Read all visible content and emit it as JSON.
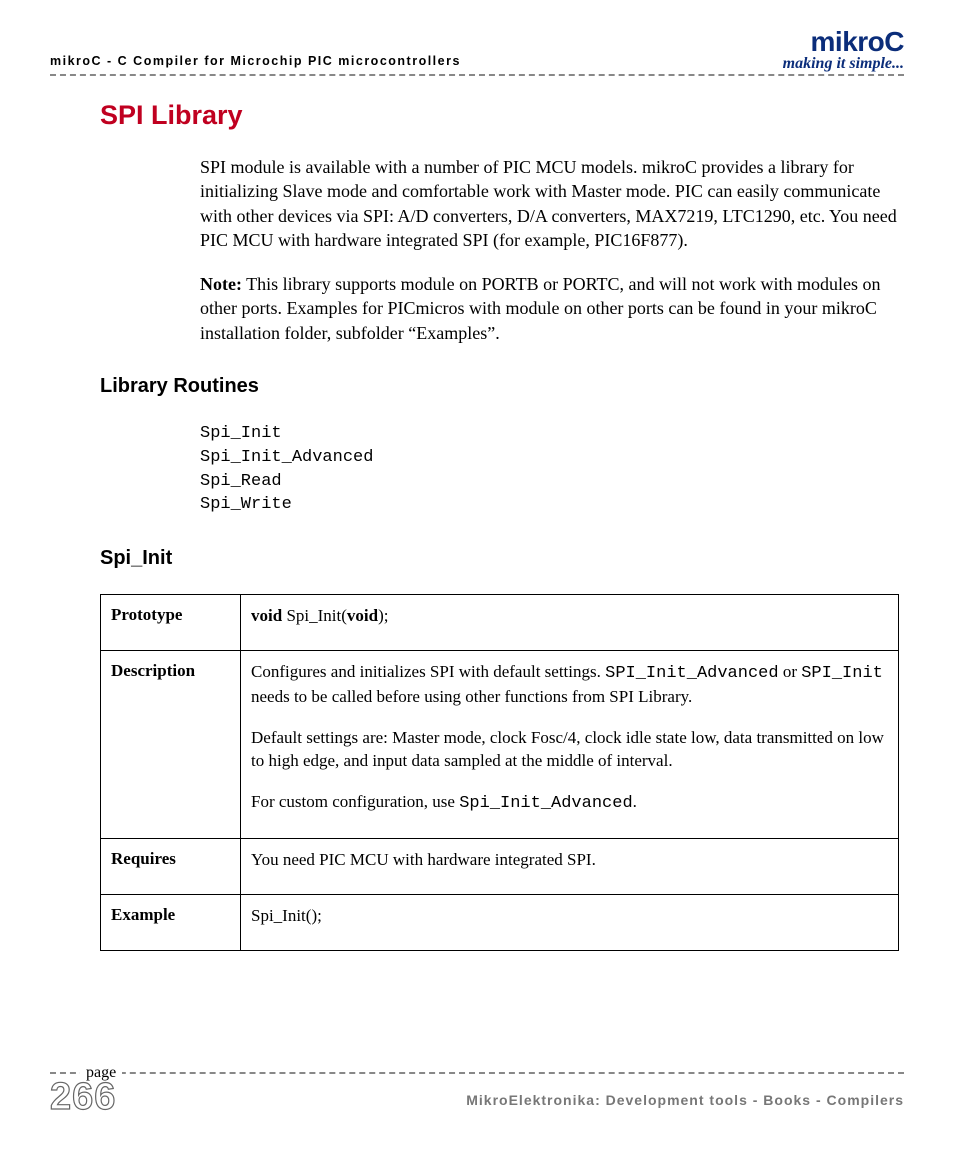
{
  "header": {
    "left": "mikroC - C Compiler for Microchip PIC microcontrollers",
    "brand": "mikroC",
    "tagline": "making it simple..."
  },
  "title": "SPI Library",
  "intro_para": "SPI module is available with a number of PIC MCU models. mikroC provides a library for initializing Slave mode and comfortable work with Master mode. PIC can easily communicate with other devices via SPI: A/D converters, D/A converters, MAX7219, LTC1290, etc. You need PIC MCU with hardware integrated SPI (for example, PIC16F877).",
  "note_label": "Note:",
  "note_text": " This library supports module on PORTB or PORTC, and will not work with modules on other ports. Examples for PICmicros with module on other ports can be found in your mikroC installation folder, subfolder “Examples”.",
  "section_routines": "Library Routines",
  "routines": [
    "Spi_Init",
    "Spi_Init_Advanced",
    "Spi_Read",
    "Spi_Write"
  ],
  "section_func": "Spi_Init",
  "table": {
    "rows": [
      {
        "label": "Prototype"
      },
      {
        "label": "Description"
      },
      {
        "label": "Requires"
      },
      {
        "label": "Example"
      }
    ],
    "prototype": {
      "kw1": "void",
      "fn": " Spi_Init(",
      "kw2": "void",
      "end": ");"
    },
    "description": {
      "p1_a": "Configures and initializes SPI with default settings. ",
      "p1_code1": "SPI_Init_Advanced",
      "p1_b": " or ",
      "p1_code2": "SPI_Init",
      "p1_c": " needs to be called before using other functions from SPI Library.",
      "p2": "Default settings are: Master mode, clock Fosc/4, clock idle state low, data transmitted on low to high edge, and input data sampled at the middle of interval.",
      "p3_a": "For custom configuration, use ",
      "p3_code": "Spi_Init_Advanced",
      "p3_b": "."
    },
    "requires": "You need PIC MCU with hardware integrated SPI.",
    "example": "Spi_Init();"
  },
  "footer": {
    "page_label": "page",
    "page_num": "266",
    "text": "MikroElektronika: Development tools - Books - Compilers"
  },
  "colors": {
    "title": "#c00020",
    "brand": "#0b2d7a",
    "dash": "#888888",
    "footer_text": "#777777"
  }
}
